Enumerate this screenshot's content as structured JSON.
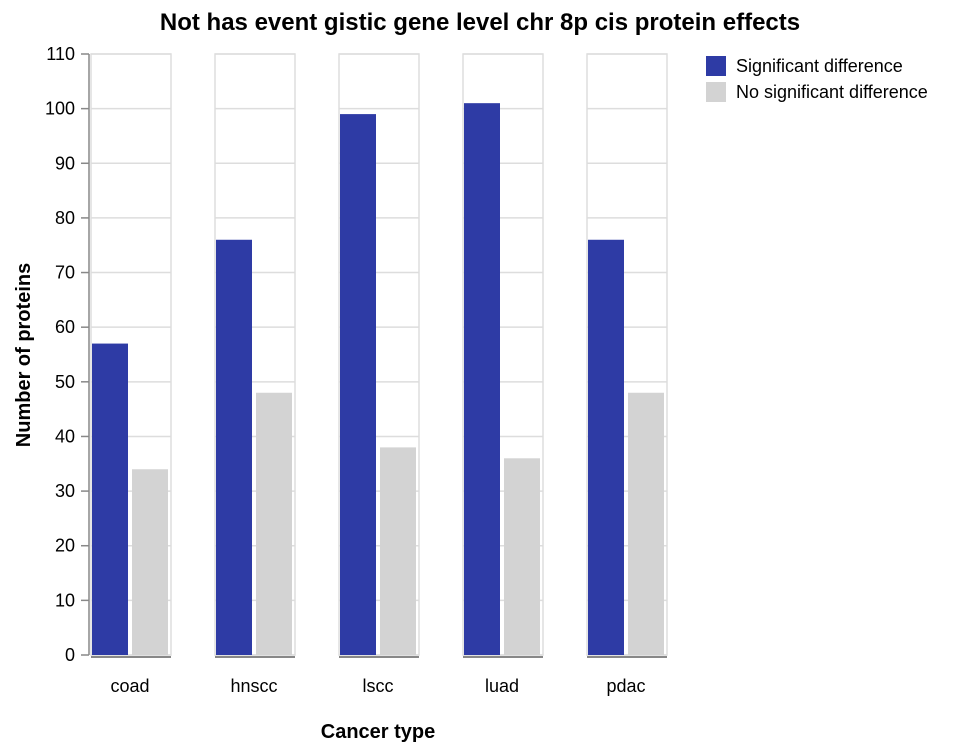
{
  "chart_data": {
    "type": "bar",
    "title": "Not has event gistic gene level chr 8p cis protein effects",
    "xlabel": "Cancer type",
    "ylabel": "Number of proteins",
    "categories": [
      "coad",
      "hnscc",
      "lscc",
      "luad",
      "pdac"
    ],
    "series": [
      {
        "name": "Significant difference",
        "color": "#2e3ba5",
        "values": [
          57,
          76,
          99,
          101,
          76
        ]
      },
      {
        "name": "No significant difference",
        "color": "#d3d3d3",
        "values": [
          34,
          48,
          38,
          36,
          48
        ]
      }
    ],
    "ylim": [
      0,
      110
    ],
    "yticks": [
      "0",
      "10",
      "20",
      "30",
      "40",
      "50",
      "60",
      "70",
      "80",
      "90",
      "100",
      "110"
    ],
    "grid": true,
    "legend": "top-right"
  }
}
